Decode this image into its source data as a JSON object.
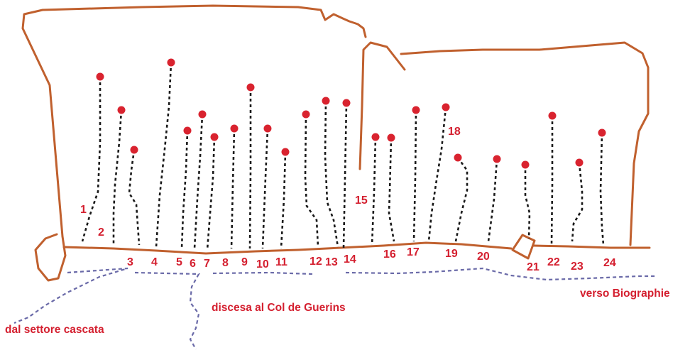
{
  "colors": {
    "rock_outline": "#c0602e",
    "anchor": "#d9232f",
    "route_line": "#1a1a1a",
    "approach_path": "#6a6aa8",
    "text": "#d41f2f"
  },
  "routes": [
    {
      "number": "1"
    },
    {
      "number": "2"
    },
    {
      "number": "3"
    },
    {
      "number": "4"
    },
    {
      "number": "5"
    },
    {
      "number": "6"
    },
    {
      "number": "7"
    },
    {
      "number": "8"
    },
    {
      "number": "9"
    },
    {
      "number": "10"
    },
    {
      "number": "11"
    },
    {
      "number": "12"
    },
    {
      "number": "13"
    },
    {
      "number": "14"
    },
    {
      "number": "15"
    },
    {
      "number": "16"
    },
    {
      "number": "17"
    },
    {
      "number": "18"
    },
    {
      "number": "19"
    },
    {
      "number": "20"
    },
    {
      "number": "21"
    },
    {
      "number": "22"
    },
    {
      "number": "23"
    },
    {
      "number": "24"
    }
  ],
  "labels": {
    "from_waterfall": "dal settore cascata",
    "descent": "discesa al Col de Guerins",
    "toward": "verso Biographie"
  }
}
